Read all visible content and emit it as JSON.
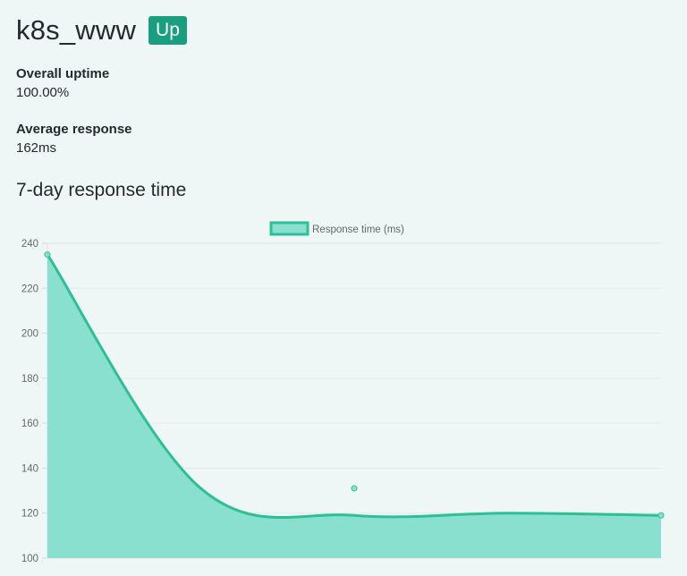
{
  "site": {
    "name": "k8s_www",
    "status": "Up",
    "status_color": "#199e7f"
  },
  "stats": {
    "uptime_label": "Overall uptime",
    "uptime_value": "100.00%",
    "response_label": "Average response",
    "response_value": "162ms"
  },
  "section": {
    "title": "7-day response time"
  },
  "chart_data": {
    "type": "area",
    "series": [
      {
        "name": "Response time (ms)",
        "color": "#2dbf96",
        "fill": "#8ae0ce",
        "points": [
          [
            0,
            235
          ],
          [
            0.5,
            131
          ],
          [
            1,
            119
          ]
        ],
        "curve_y": [
          235,
          131,
          119,
          120,
          119
        ]
      }
    ],
    "y_ticks": [
      "240",
      "220",
      "200",
      "180",
      "160",
      "140",
      "120",
      "100"
    ],
    "ylim": [
      100,
      240
    ],
    "grid": true,
    "legend": "top-center"
  }
}
